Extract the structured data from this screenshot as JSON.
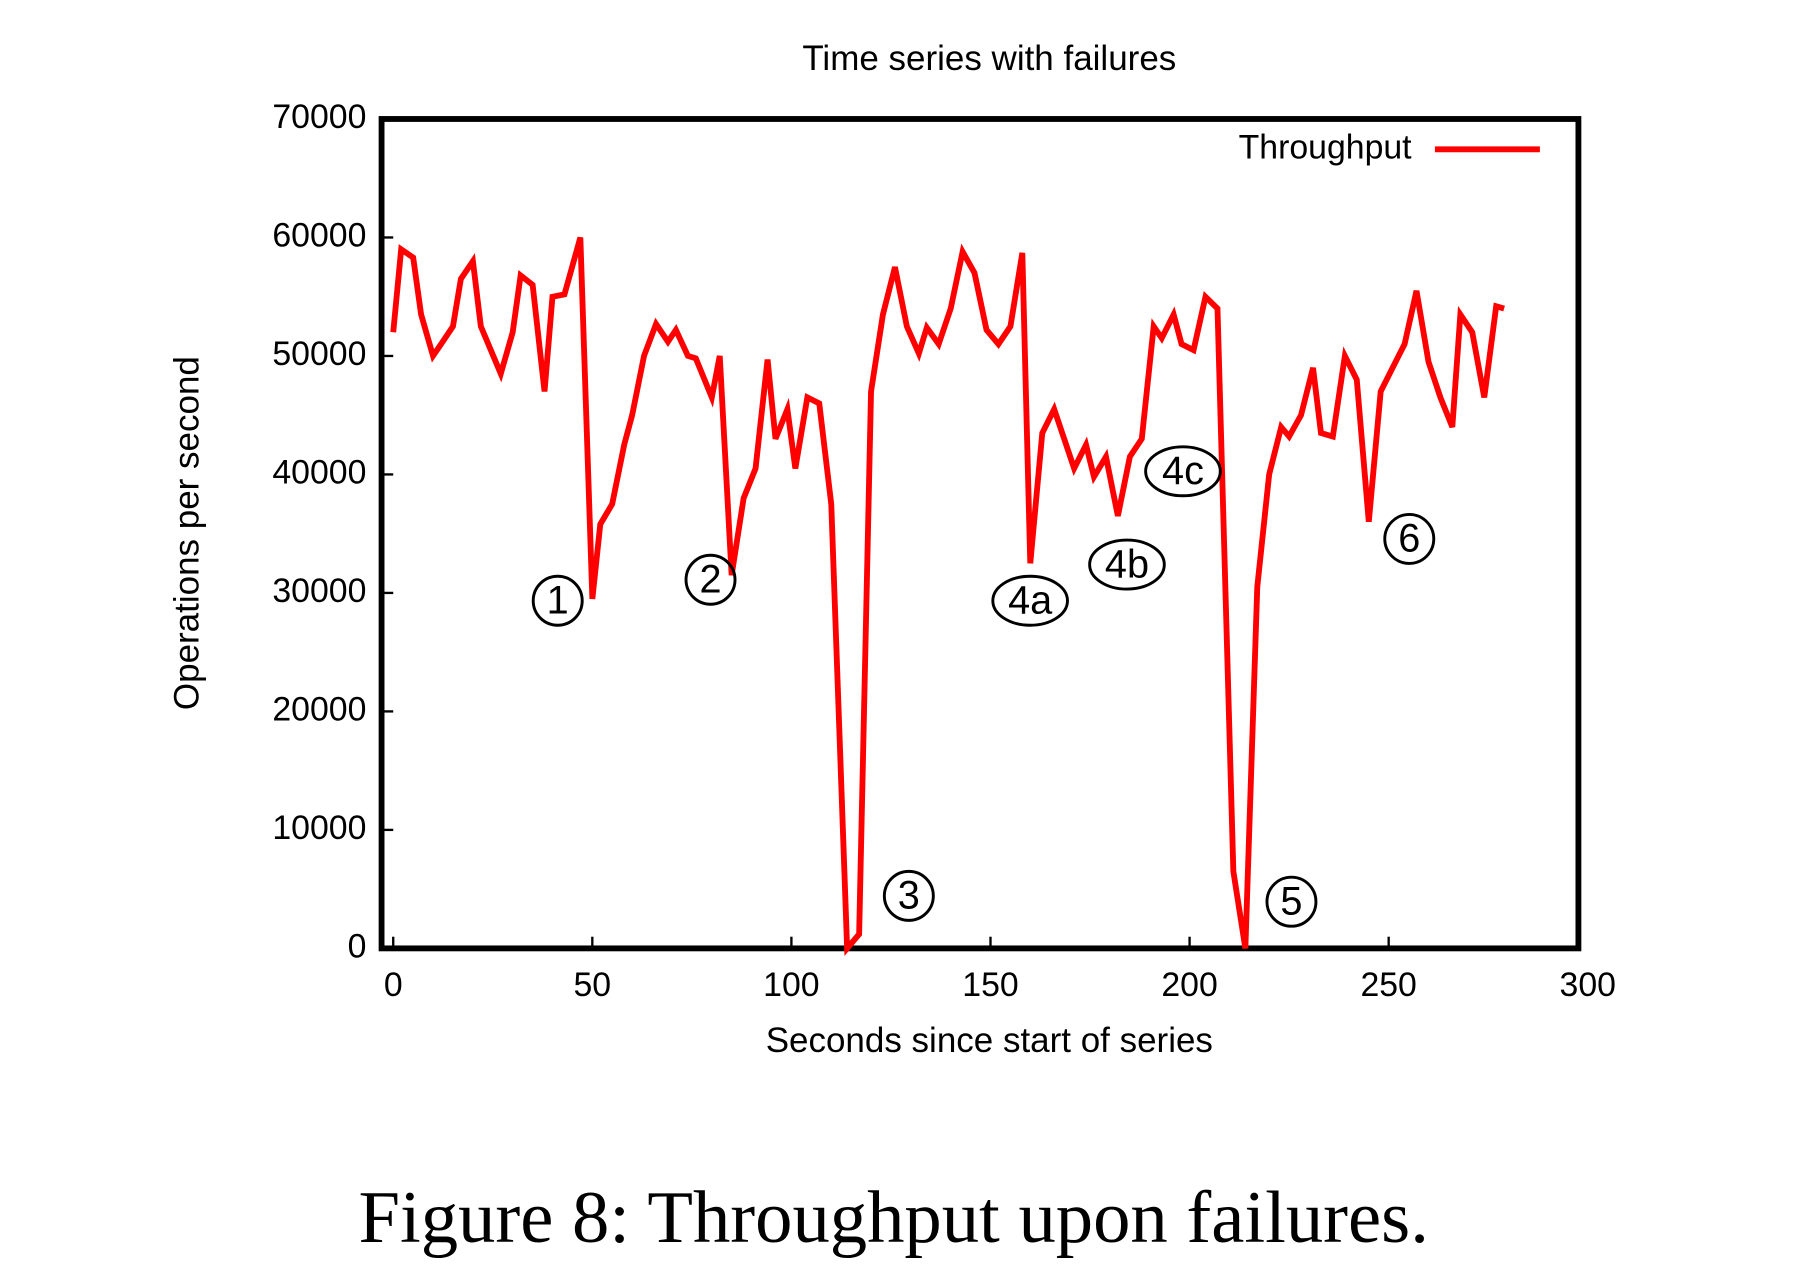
{
  "chart_data": {
    "type": "line",
    "title": "Time series with failures",
    "xlabel": "Seconds since start of series",
    "ylabel": "Operations per second",
    "xlim": [
      0,
      300
    ],
    "ylim": [
      0,
      70000
    ],
    "xticks": [
      0,
      50,
      100,
      150,
      200,
      250,
      300
    ],
    "yticks": [
      0,
      10000,
      20000,
      30000,
      40000,
      50000,
      60000,
      70000
    ],
    "legend": "top-right",
    "annotations": [
      "1",
      "2",
      "3",
      "4a",
      "4b",
      "4c",
      "5",
      "6"
    ],
    "x": [
      0,
      2,
      5,
      7,
      10,
      12,
      15,
      17,
      20,
      22,
      27,
      30,
      32,
      35,
      38,
      40,
      43,
      47,
      50,
      52,
      55,
      58,
      60,
      63,
      66,
      69,
      71,
      74,
      76,
      80,
      82,
      85,
      88,
      91,
      94,
      96,
      99,
      101,
      104,
      107,
      110,
      114,
      117,
      120,
      123,
      126,
      129,
      132,
      134,
      137,
      140,
      143,
      146,
      149,
      152,
      155,
      158,
      160,
      163,
      166,
      169,
      171,
      174,
      176,
      179,
      182,
      185,
      188,
      191,
      193,
      196,
      198,
      201,
      204,
      207,
      211,
      214,
      217,
      220,
      223,
      225,
      228,
      231,
      233,
      236,
      239,
      242,
      245,
      248,
      251,
      254,
      257,
      260,
      263,
      266,
      268,
      271,
      274,
      277,
      279
    ],
    "series": [
      {
        "name": "Throughput",
        "color": "#ff0000",
        "values": [
          52000,
          59000,
          58300,
          53500,
          50000,
          51000,
          52500,
          56500,
          58000,
          52500,
          48500,
          52000,
          56800,
          56000,
          47000,
          55000,
          55200,
          60000,
          29500,
          35800,
          37500,
          42500,
          45000,
          50000,
          52700,
          51200,
          52200,
          50000,
          49800,
          46500,
          50000,
          31500,
          38000,
          40500,
          49700,
          43000,
          45500,
          40500,
          46500,
          46000,
          37500,
          0,
          1200,
          47000,
          53500,
          57500,
          52500,
          50200,
          52400,
          51000,
          54000,
          58800,
          57000,
          52200,
          51000,
          52500,
          58700,
          32500,
          43500,
          45500,
          42500,
          40500,
          42500,
          39800,
          41500,
          36500,
          41500,
          43000,
          52500,
          51500,
          53500,
          51000,
          50500,
          55000,
          54000,
          6500,
          0,
          30500,
          40000,
          44000,
          43200,
          45000,
          49000,
          43500,
          43200,
          50000,
          48000,
          36000,
          47000,
          49000,
          51000,
          55500,
          49500,
          46500,
          44000,
          53500,
          52000,
          46500,
          54200,
          54000
        ]
      }
    ]
  },
  "caption": "Figure 8: Throughput upon failures."
}
